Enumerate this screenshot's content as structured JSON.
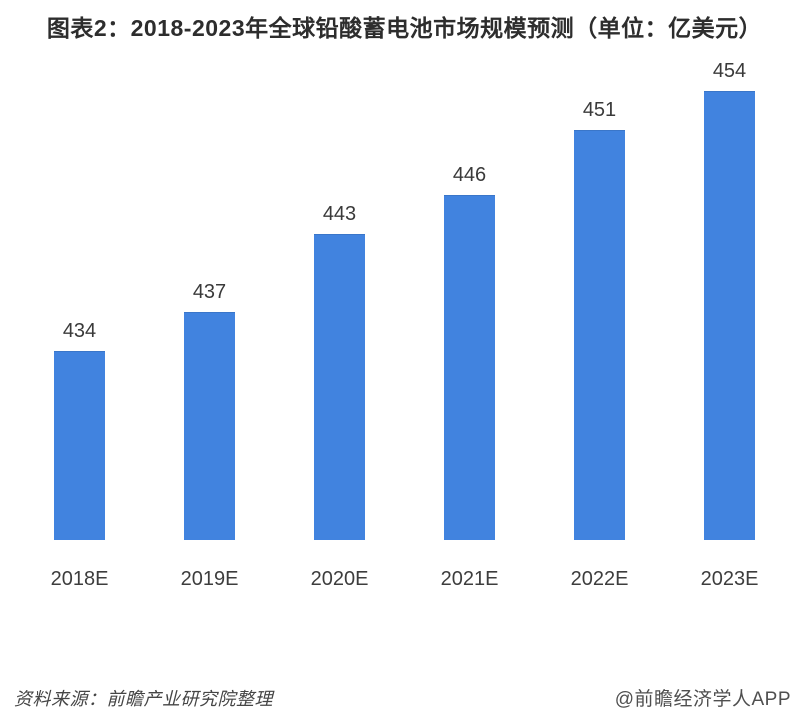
{
  "chart_data": {
    "type": "bar",
    "title": "图表2：2018-2023年全球铅酸蓄电池市场规模预测（单位：亿美元）",
    "categories": [
      "2018E",
      "2019E",
      "2020E",
      "2021E",
      "2022E",
      "2023E"
    ],
    "values": [
      434,
      437,
      443,
      446,
      451,
      454
    ],
    "unit": "亿美元",
    "bar_color": "#4183df",
    "value_labels_shown": true,
    "grid": false,
    "legend": "none",
    "ylim": [
      419.5,
      455
    ]
  },
  "footer": {
    "source": "资料来源：前瞻产业研究院整理",
    "watermark": "@前瞻经济学人APP"
  }
}
